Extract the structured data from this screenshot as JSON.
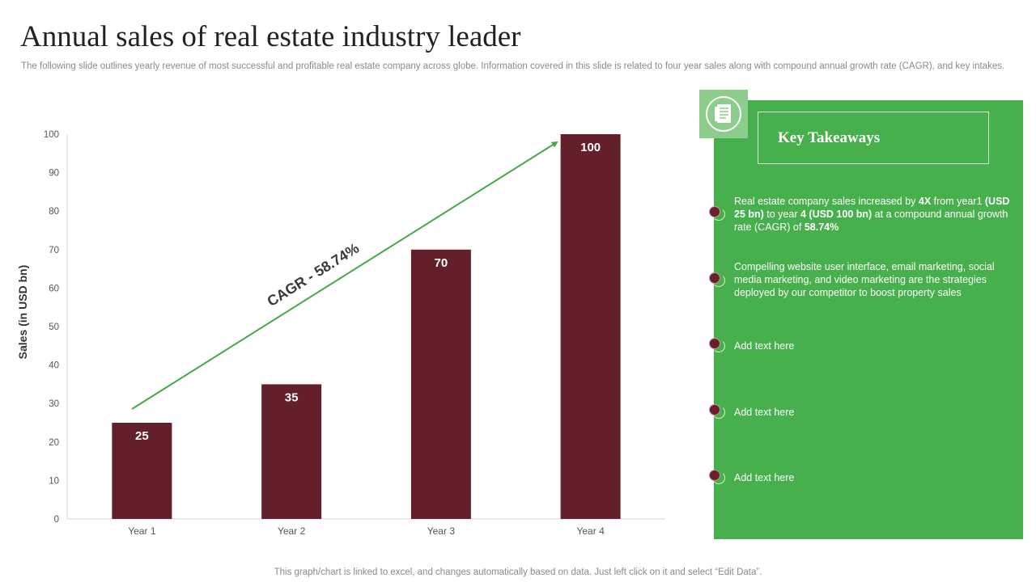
{
  "page": {
    "title": "Annual sales of real estate industry leader",
    "subtitle": "The following slide outlines yearly revenue of most successful and profitable real estate company across globe. Information covered in this slide is related to four year sales along with compound annual growth rate (CAGR),  and key intakes.",
    "footer": "This graph/chart is linked to excel,  and changes automatically based on data. Just left click on it and select “Edit Data”."
  },
  "chart_data": {
    "type": "bar",
    "categories": [
      "Year 1",
      "Year 2",
      "Year 3",
      "Year 4"
    ],
    "values": [
      25,
      35,
      70,
      100
    ],
    "data_labels": [
      "25",
      "35",
      "70",
      "100"
    ],
    "title": "",
    "xlabel": "",
    "ylabel": "Sales (in USD bn)",
    "ylim": [
      0,
      100
    ],
    "yticks": [
      0,
      10,
      20,
      30,
      40,
      50,
      60,
      70,
      80,
      90,
      100
    ],
    "grid": false,
    "annotation": "CAGR - 58.74%",
    "bar_color": "#63202b",
    "arrow_color": "#47a847"
  },
  "takeaways": {
    "heading": "Key Takeaways",
    "icon": "document-list-icon",
    "panel_color": "#47b04c",
    "items": [
      {
        "parts": [
          {
            "text": "Real estate company sales increased by ",
            "bold": false
          },
          {
            "text": "4X",
            "bold": true
          },
          {
            "text": " from year1 ",
            "bold": false
          },
          {
            "text": "(USD 25 bn)",
            "bold": true
          },
          {
            "text": " to year ",
            "bold": false
          },
          {
            "text": "4 (USD 100 bn)",
            "bold": true
          },
          {
            "text": " at a compound annual growth rate (CAGR) of ",
            "bold": false
          },
          {
            "text": "58.74%",
            "bold": true
          }
        ]
      },
      {
        "parts": [
          {
            "text": "Compelling website user interface, email marketing, social media marketing, and video marketing are the strategies deployed by our competitor to boost property sales",
            "bold": false
          }
        ]
      },
      {
        "parts": [
          {
            "text": "Add text here",
            "bold": false
          }
        ]
      },
      {
        "parts": [
          {
            "text": "Add text here",
            "bold": false
          }
        ]
      },
      {
        "parts": [
          {
            "text": "Add text here",
            "bold": false
          }
        ]
      }
    ]
  }
}
